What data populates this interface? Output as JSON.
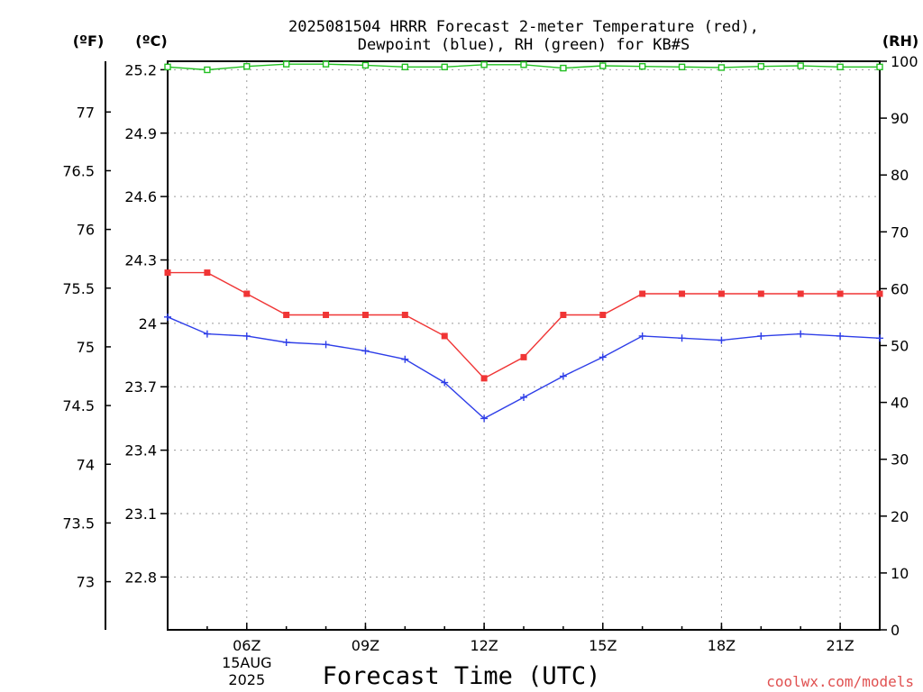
{
  "chart_data": {
    "type": "line",
    "title_line1": "2025081504 HRRR Forecast 2-meter Temperature (red),",
    "title_line2": "Dewpoint (blue), RH (green) for KB#S",
    "xlabel": "Forecast Time (UTC)",
    "credit": "coolwx.com/models",
    "unit_f": "(ºF)",
    "unit_c": "(ºC)",
    "unit_rh": "(RH)",
    "x_hours": [
      4,
      5,
      6,
      7,
      8,
      9,
      10,
      11,
      12,
      13,
      14,
      15,
      16,
      17,
      18,
      19,
      20,
      21,
      22
    ],
    "xlim": [
      4,
      22
    ],
    "x_ticks": [
      {
        "hour": 6,
        "label": "06Z",
        "sub1": "15AUG",
        "sub2": "2025"
      },
      {
        "hour": 9,
        "label": "09Z"
      },
      {
        "hour": 12,
        "label": "12Z"
      },
      {
        "hour": 15,
        "label": "15Z"
      },
      {
        "hour": 18,
        "label": "18Z"
      },
      {
        "hour": 21,
        "label": "21Z"
      }
    ],
    "celsius_ticks": [
      "22.8",
      "23.1",
      "23.4",
      "23.7",
      "24",
      "24.3",
      "24.6",
      "24.9",
      "25.2"
    ],
    "fahrenheit_ticks": [
      "73",
      "73.5",
      "74",
      "74.5",
      "75",
      "75.5",
      "76",
      "76.5",
      "77"
    ],
    "rh_ticks": [
      "0",
      "10",
      "20",
      "30",
      "40",
      "50",
      "60",
      "70",
      "80",
      "90",
      "100"
    ],
    "ylim_c": [
      22.55,
      25.24
    ],
    "ylim_rh": [
      0,
      100
    ],
    "series": [
      {
        "name": "Temperature",
        "color": "#f03535",
        "marker": "filled-square",
        "axis": "c",
        "values": [
          24.24,
          24.24,
          24.14,
          24.04,
          24.04,
          24.04,
          24.04,
          23.94,
          23.74,
          23.84,
          24.04,
          24.04,
          24.14,
          24.14,
          24.14,
          24.14,
          24.14,
          24.14,
          24.14
        ]
      },
      {
        "name": "Dewpoint",
        "color": "#2e3ee8",
        "marker": "plus",
        "axis": "c",
        "values": [
          24.03,
          23.95,
          23.94,
          23.91,
          23.9,
          23.87,
          23.83,
          23.72,
          23.55,
          23.65,
          23.75,
          23.84,
          23.94,
          23.93,
          23.92,
          23.94,
          23.95,
          23.94,
          23.93
        ]
      },
      {
        "name": "RH",
        "color": "#22c022",
        "marker": "open-square",
        "axis": "rh",
        "values": [
          99.0,
          98.5,
          99.1,
          99.5,
          99.5,
          99.3,
          99.0,
          99.0,
          99.4,
          99.4,
          98.8,
          99.2,
          99.1,
          99.0,
          98.9,
          99.1,
          99.2,
          99.0,
          99.0
        ]
      }
    ]
  }
}
